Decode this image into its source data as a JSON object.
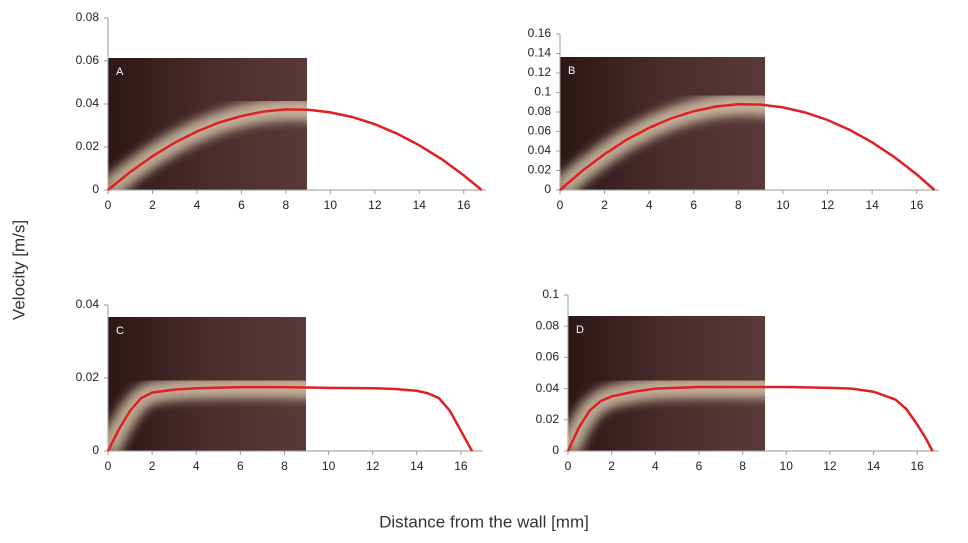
{
  "y_label": "Velocity [m/s]",
  "x_label": "Distance from the wall [mm]",
  "chart_data": [
    {
      "type": "line",
      "panel": "A",
      "x": [
        0,
        1,
        2,
        3,
        4,
        5,
        6,
        7,
        8,
        9,
        10,
        11,
        12,
        13,
        14,
        15,
        16,
        16.8
      ],
      "series": [
        {
          "color": "#e02020",
          "values": [
            0,
            0.0084,
            0.0157,
            0.022,
            0.0272,
            0.0314,
            0.0344,
            0.0365,
            0.0375,
            0.0373,
            0.0361,
            0.0339,
            0.0306,
            0.0262,
            0.0208,
            0.0144,
            0.0068,
            0
          ]
        }
      ],
      "xlim": [
        0,
        17
      ],
      "xticks": [
        0,
        2,
        4,
        6,
        8,
        10,
        12,
        14,
        16
      ],
      "ylim": [
        0,
        0.08
      ],
      "yticks": [
        0,
        0.02,
        0.04,
        0.06,
        0.08
      ]
    },
    {
      "type": "line",
      "panel": "B",
      "x": [
        0,
        1,
        2,
        3,
        4,
        5,
        6,
        7,
        8,
        9,
        10,
        11,
        12,
        13,
        14,
        15,
        16,
        16.8
      ],
      "series": [
        {
          "color": "#e02020",
          "values": [
            0,
            0.0197,
            0.0368,
            0.0517,
            0.0638,
            0.0736,
            0.0808,
            0.0856,
            0.088,
            0.0876,
            0.0847,
            0.0795,
            0.0718,
            0.0616,
            0.0489,
            0.0337,
            0.016,
            0
          ]
        }
      ],
      "xlim": [
        0,
        17
      ],
      "xticks": [
        0,
        2,
        4,
        6,
        8,
        10,
        12,
        14,
        16
      ],
      "ylim": [
        0,
        0.16
      ],
      "yticks": [
        0,
        0.02,
        0.04,
        0.06,
        0.08,
        0.1,
        0.12,
        0.14,
        0.16
      ]
    },
    {
      "type": "line",
      "panel": "C",
      "x": [
        0,
        0.5,
        1,
        1.5,
        2,
        3,
        4,
        6,
        8,
        10,
        12,
        13,
        14,
        14.5,
        15,
        15.5,
        16,
        16.5
      ],
      "series": [
        {
          "color": "#e02020",
          "values": [
            0,
            0.006,
            0.011,
            0.0145,
            0.016,
            0.0168,
            0.0172,
            0.0175,
            0.0175,
            0.0173,
            0.0172,
            0.017,
            0.0165,
            0.0158,
            0.0145,
            0.011,
            0.0055,
            0
          ]
        }
      ],
      "xlim": [
        0,
        17
      ],
      "xticks": [
        0,
        2,
        4,
        6,
        8,
        10,
        12,
        14,
        16
      ],
      "ylim": [
        0,
        0.04
      ],
      "yticks": [
        0,
        0.02,
        0.04
      ]
    },
    {
      "type": "line",
      "panel": "D",
      "x": [
        0,
        0.5,
        1,
        1.5,
        2,
        3,
        4,
        6,
        8,
        10,
        12,
        13,
        14,
        15,
        15.5,
        16,
        16.4,
        16.7
      ],
      "series": [
        {
          "color": "#e02020",
          "values": [
            0,
            0.015,
            0.026,
            0.032,
            0.035,
            0.038,
            0.04,
            0.041,
            0.041,
            0.041,
            0.0405,
            0.04,
            0.038,
            0.033,
            0.027,
            0.017,
            0.008,
            0
          ]
        }
      ],
      "xlim": [
        0,
        17
      ],
      "xticks": [
        0,
        2,
        4,
        6,
        8,
        10,
        12,
        14,
        16
      ],
      "ylim": [
        0,
        0.1
      ],
      "yticks": [
        0,
        0.02,
        0.04,
        0.06,
        0.08,
        0.1
      ]
    }
  ]
}
